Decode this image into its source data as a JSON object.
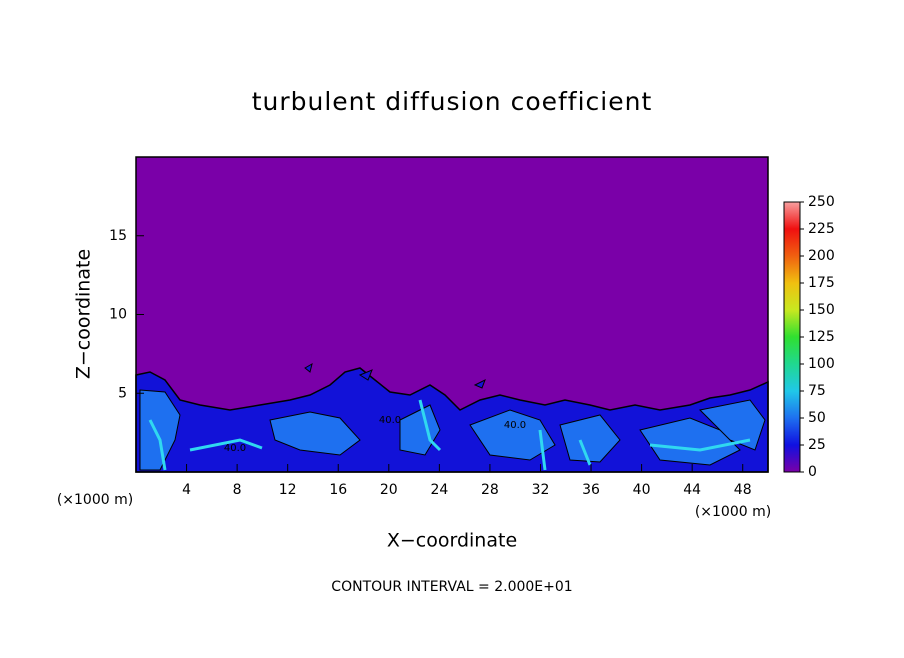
{
  "chart_data": {
    "type": "contour",
    "title": "turbulent diffusion coefficient",
    "x_label": "X−coordinate",
    "y_label": "Z−coordinate",
    "x_unit_labels": [
      "(×1000 m)",
      "(×1000 m)"
    ],
    "footer": "CONTOUR INTERVAL = 2.000E+01",
    "contour_labels": [
      "40.0",
      "40.0",
      "40.0"
    ],
    "xlim": [
      0,
      50
    ],
    "xticks": [
      4,
      8,
      12,
      16,
      20,
      24,
      28,
      32,
      36,
      40,
      44,
      48
    ],
    "ylim": [
      0,
      20
    ],
    "yticks": [
      5,
      10,
      15
    ],
    "colorbar": {
      "lim": [
        0,
        250
      ],
      "ticks": [
        0,
        25,
        50,
        75,
        100,
        125,
        150,
        175,
        200,
        225,
        250
      ],
      "colors": [
        "#7a00a8",
        "#1010e0",
        "#1e70f0",
        "#20c8e8",
        "#20d890",
        "#30e030",
        "#c8e820",
        "#f0c010",
        "#f06010",
        "#f01010",
        "#f8a0a0"
      ]
    }
  }
}
